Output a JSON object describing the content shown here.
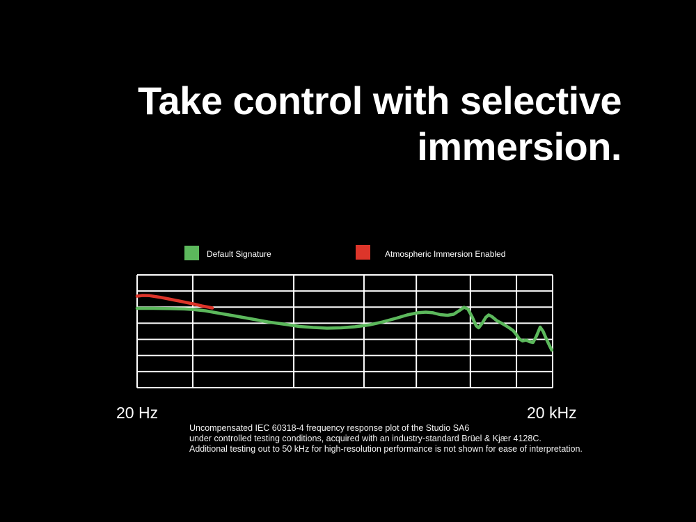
{
  "title": {
    "line1": "Take control with selective",
    "line2": "immersion.",
    "color": "#ffffff"
  },
  "legend": {
    "items": [
      {
        "label": "Default Signature",
        "color": "#5cb85c"
      },
      {
        "label": "Atmospheric Immersion Enabled",
        "color": "#dd352a"
      }
    ]
  },
  "x_axis": {
    "left_label": "20 Hz",
    "right_label": "20 kHz"
  },
  "caption": {
    "line1": "Uncompensated IEC 60318-4 frequency response plot of the Studio SA6",
    "line2": "under controlled testing conditions, acquired with an industry-standard Brüel & Kjær 4128C.",
    "line3": "Additional testing out to 50 kHz for high-resolution performance is not shown for ease of interpretation."
  },
  "chart_data": {
    "type": "line",
    "title": "Uncompensated IEC 60318-4 frequency response plot of the Studio SA6",
    "xlabel_left": "20 Hz",
    "xlabel_right": "20 kHz",
    "x_scale": "logarithmic",
    "y_axis": "unlabeled (relative SPL, dB); 7 equal gridline rows, no tick values shown",
    "legend_position": "above-chart",
    "grid": {
      "on": true,
      "color": "#ffffff",
      "line_width": 2,
      "vertical_fracs": [
        0,
        0.134,
        0.377,
        0.546,
        0.672,
        0.802,
        0.913,
        1.0
      ],
      "horizontal_fracs": [
        0,
        0.1429,
        0.2857,
        0.4286,
        0.5714,
        0.7143,
        0.8571,
        1.0
      ]
    },
    "point_encoding": "x = fraction along log frequency axis from 20 Hz to 20 kHz; y = fraction of plot height measured from top edge",
    "series": [
      {
        "name": "Default Signature",
        "color": "#5cb85c",
        "stroke_width": 4.5,
        "points": [
          [
            0.0,
            0.296
          ],
          [
            0.039,
            0.296
          ],
          [
            0.08,
            0.299
          ],
          [
            0.114,
            0.302
          ],
          [
            0.134,
            0.306
          ],
          [
            0.164,
            0.318
          ],
          [
            0.198,
            0.34
          ],
          [
            0.231,
            0.361
          ],
          [
            0.273,
            0.389
          ],
          [
            0.315,
            0.417
          ],
          [
            0.357,
            0.438
          ],
          [
            0.39,
            0.457
          ],
          [
            0.424,
            0.466
          ],
          [
            0.457,
            0.472
          ],
          [
            0.491,
            0.469
          ],
          [
            0.524,
            0.46
          ],
          [
            0.558,
            0.444
          ],
          [
            0.591,
            0.417
          ],
          [
            0.625,
            0.383
          ],
          [
            0.65,
            0.355
          ],
          [
            0.675,
            0.336
          ],
          [
            0.695,
            0.33
          ],
          [
            0.712,
            0.336
          ],
          [
            0.729,
            0.352
          ],
          [
            0.747,
            0.358
          ],
          [
            0.762,
            0.349
          ],
          [
            0.776,
            0.315
          ],
          [
            0.787,
            0.287
          ],
          [
            0.796,
            0.302
          ],
          [
            0.806,
            0.37
          ],
          [
            0.816,
            0.451
          ],
          [
            0.822,
            0.469
          ],
          [
            0.831,
            0.426
          ],
          [
            0.839,
            0.377
          ],
          [
            0.846,
            0.355
          ],
          [
            0.854,
            0.37
          ],
          [
            0.866,
            0.407
          ],
          [
            0.879,
            0.432
          ],
          [
            0.893,
            0.463
          ],
          [
            0.905,
            0.494
          ],
          [
            0.913,
            0.531
          ],
          [
            0.92,
            0.568
          ],
          [
            0.928,
            0.586
          ],
          [
            0.936,
            0.577
          ],
          [
            0.945,
            0.593
          ],
          [
            0.953,
            0.599
          ],
          [
            0.961,
            0.543
          ],
          [
            0.97,
            0.463
          ],
          [
            0.977,
            0.5
          ],
          [
            0.985,
            0.568
          ],
          [
            0.993,
            0.63
          ],
          [
            0.998,
            0.667
          ]
        ]
      },
      {
        "name": "Atmospheric Immersion Enabled",
        "color": "#dd352a",
        "stroke_width": 4.5,
        "points": [
          [
            0.0,
            0.188
          ],
          [
            0.013,
            0.182
          ],
          [
            0.03,
            0.184
          ],
          [
            0.055,
            0.198
          ],
          [
            0.08,
            0.216
          ],
          [
            0.106,
            0.235
          ],
          [
            0.134,
            0.256
          ],
          [
            0.156,
            0.275
          ],
          [
            0.173,
            0.287
          ],
          [
            0.181,
            0.293
          ]
        ]
      }
    ]
  }
}
